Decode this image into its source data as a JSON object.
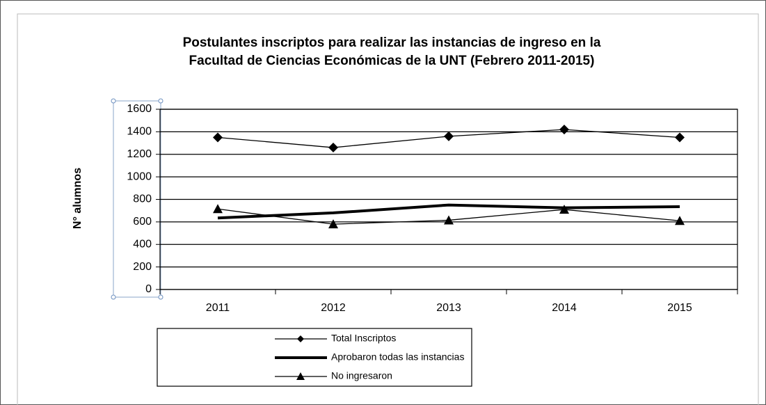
{
  "chart_data": {
    "type": "line",
    "title": [
      "Postulantes inscriptos para realizar las instancias de ingreso en la",
      "Facultad de Ciencias Económicas de la UNT (Febrero 2011-2015)"
    ],
    "y_label": "N° alumnos",
    "categories": [
      "2011",
      "2012",
      "2013",
      "2014",
      "2015"
    ],
    "series": [
      {
        "name": "Total Inscriptos",
        "color": "#000000",
        "marker": "diamond",
        "line_width": 1.3,
        "values": [
          1350,
          1260,
          1360,
          1420,
          1350
        ]
      },
      {
        "name": "Aprobaron todas las instancias",
        "color": "#000000",
        "marker": "none",
        "line_width": 4,
        "values": [
          635,
          680,
          750,
          725,
          735
        ]
      },
      {
        "name": "No ingresaron",
        "color": "#000000",
        "marker": "triangle",
        "line_width": 1.3,
        "values": [
          715,
          580,
          615,
          710,
          610
        ]
      }
    ],
    "ylim": [
      0,
      1600
    ],
    "yticks": [
      0,
      200,
      400,
      600,
      800,
      1000,
      1200,
      1400,
      1600
    ],
    "grid": true,
    "legend": "bottom"
  }
}
